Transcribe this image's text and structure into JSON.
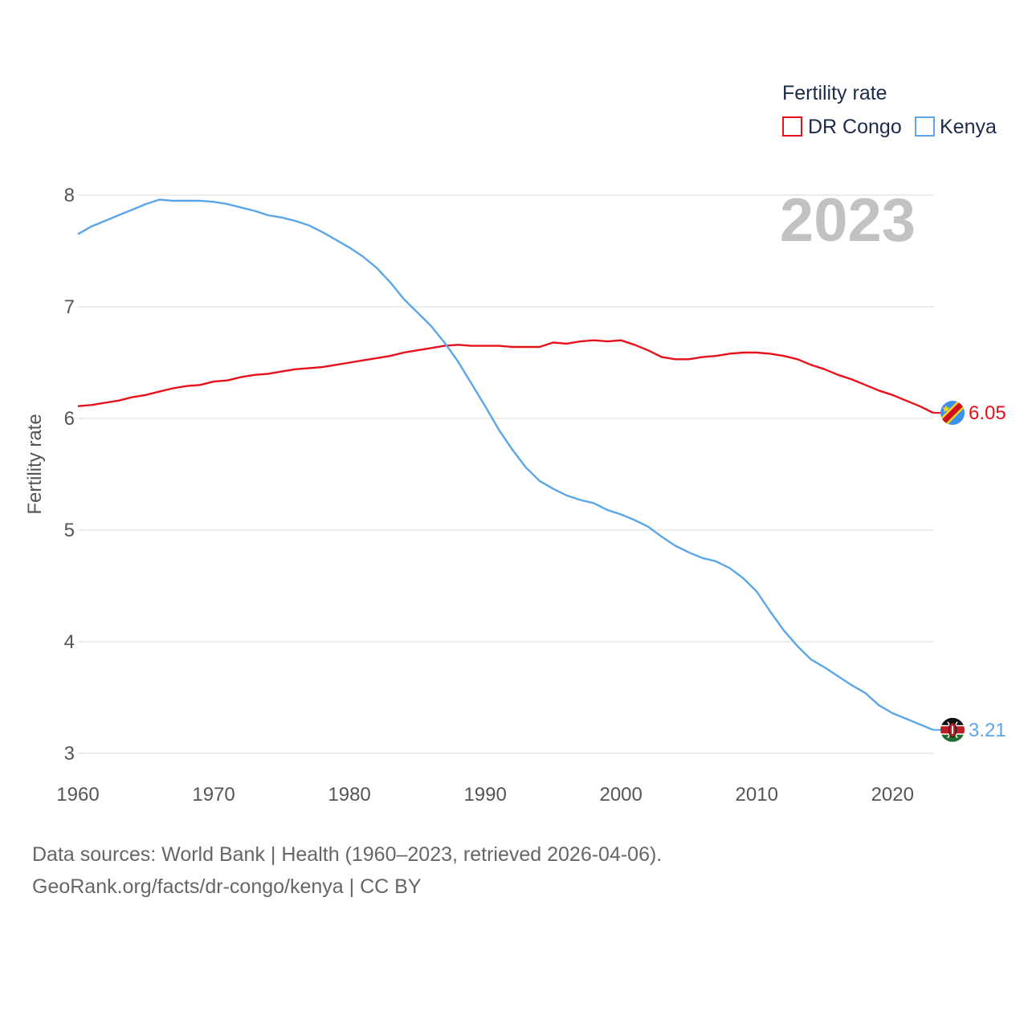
{
  "chart_data": {
    "type": "line",
    "title": "",
    "ylabel": "Fertility rate",
    "xlabel": "",
    "xlim": [
      1960,
      2023
    ],
    "ylim": [
      3,
      8
    ],
    "xticks": [
      "1960",
      "1970",
      "1980",
      "1990",
      "2000",
      "2010",
      "2020"
    ],
    "yticks": [
      "3",
      "4",
      "5",
      "6",
      "7",
      "8"
    ],
    "year_label": "2023",
    "legend": {
      "title": "Fertility rate",
      "position": "top-right"
    },
    "series": [
      {
        "name": "DR Congo",
        "color": "#e8101a",
        "end_label": "6.05",
        "flag_icon": "dr-congo-flag-icon",
        "x": [
          1960,
          1961,
          1962,
          1963,
          1964,
          1965,
          1966,
          1967,
          1968,
          1969,
          1970,
          1971,
          1972,
          1973,
          1974,
          1975,
          1976,
          1977,
          1978,
          1979,
          1980,
          1981,
          1982,
          1983,
          1984,
          1985,
          1986,
          1987,
          1988,
          1989,
          1990,
          1991,
          1992,
          1993,
          1994,
          1995,
          1996,
          1997,
          1998,
          1999,
          2000,
          2001,
          2002,
          2003,
          2004,
          2005,
          2006,
          2007,
          2008,
          2009,
          2010,
          2011,
          2012,
          2013,
          2014,
          2015,
          2016,
          2017,
          2018,
          2019,
          2020,
          2021,
          2022,
          2023
        ],
        "values": [
          6.11,
          6.12,
          6.14,
          6.16,
          6.19,
          6.21,
          6.24,
          6.27,
          6.29,
          6.3,
          6.33,
          6.34,
          6.37,
          6.39,
          6.4,
          6.42,
          6.44,
          6.45,
          6.46,
          6.48,
          6.5,
          6.52,
          6.54,
          6.56,
          6.59,
          6.61,
          6.63,
          6.65,
          6.66,
          6.65,
          6.65,
          6.65,
          6.64,
          6.64,
          6.64,
          6.68,
          6.67,
          6.69,
          6.7,
          6.69,
          6.7,
          6.66,
          6.61,
          6.55,
          6.53,
          6.53,
          6.55,
          6.56,
          6.58,
          6.59,
          6.59,
          6.58,
          6.56,
          6.53,
          6.48,
          6.44,
          6.39,
          6.35,
          6.3,
          6.25,
          6.21,
          6.16,
          6.11,
          6.05
        ]
      },
      {
        "name": "Kenya",
        "color": "#5aa6e8",
        "end_label": "3.21",
        "flag_icon": "kenya-flag-icon",
        "x": [
          1960,
          1961,
          1962,
          1963,
          1964,
          1965,
          1966,
          1967,
          1968,
          1969,
          1970,
          1971,
          1972,
          1973,
          1974,
          1975,
          1976,
          1977,
          1978,
          1979,
          1980,
          1981,
          1982,
          1983,
          1984,
          1985,
          1986,
          1987,
          1988,
          1989,
          1990,
          1991,
          1992,
          1993,
          1994,
          1995,
          1996,
          1997,
          1998,
          1999,
          2000,
          2001,
          2002,
          2003,
          2004,
          2005,
          2006,
          2007,
          2008,
          2009,
          2010,
          2011,
          2012,
          2013,
          2014,
          2015,
          2016,
          2017,
          2018,
          2019,
          2020,
          2021,
          2022,
          2023
        ],
        "values": [
          7.65,
          7.72,
          7.77,
          7.82,
          7.87,
          7.92,
          7.96,
          7.95,
          7.95,
          7.95,
          7.94,
          7.92,
          7.89,
          7.86,
          7.82,
          7.8,
          7.77,
          7.73,
          7.67,
          7.6,
          7.53,
          7.45,
          7.35,
          7.22,
          7.07,
          6.95,
          6.83,
          6.68,
          6.51,
          6.31,
          6.11,
          5.9,
          5.72,
          5.56,
          5.44,
          5.37,
          5.31,
          5.27,
          5.24,
          5.18,
          5.14,
          5.09,
          5.03,
          4.94,
          4.86,
          4.8,
          4.75,
          4.72,
          4.66,
          4.57,
          4.45,
          4.27,
          4.1,
          3.96,
          3.84,
          3.77,
          3.69,
          3.61,
          3.54,
          3.43,
          3.36,
          3.31,
          3.26,
          3.21
        ]
      }
    ]
  },
  "footer": {
    "line1": "Data sources: World Bank | Health (1960–2023, retrieved 2026-04-06).",
    "line2": "GeoRank.org/facts/dr-congo/kenya | CC BY"
  }
}
